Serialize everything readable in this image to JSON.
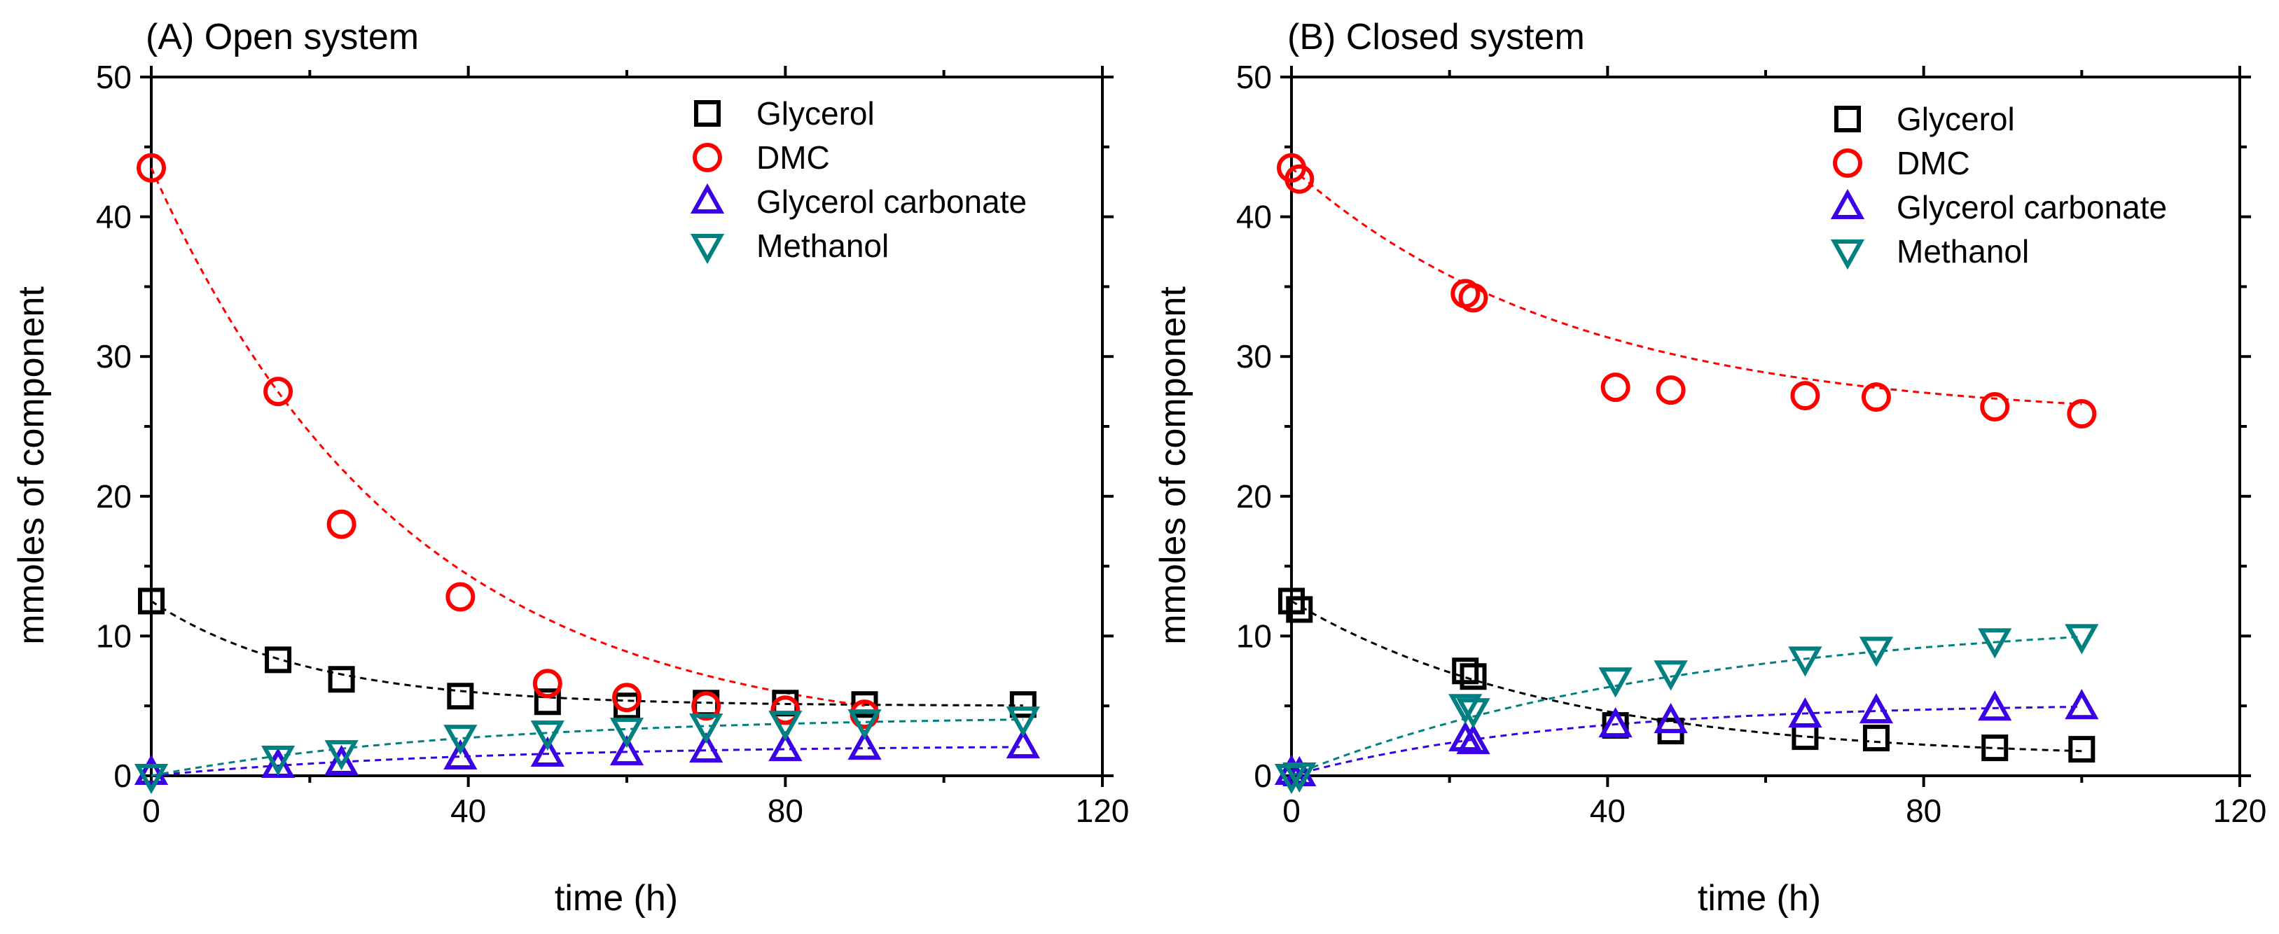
{
  "chart_data": [
    {
      "type": "scatter",
      "title": "(A) Open system",
      "xlabel": "time (h)",
      "ylabel": "mmoles of component",
      "xlim": [
        0,
        120
      ],
      "ylim": [
        0,
        50
      ],
      "xticks": [
        0,
        40,
        80,
        120
      ],
      "yticks": [
        0,
        10,
        20,
        30,
        40,
        50
      ],
      "legend_position": "top-right",
      "grid": false,
      "series": [
        {
          "name": "Glycerol",
          "marker": "square",
          "color": "#000000",
          "x": [
            0,
            16,
            24,
            39,
            50,
            60,
            70,
            80,
            90,
            110
          ],
          "y": [
            12.5,
            8.3,
            6.9,
            5.7,
            5.3,
            5.0,
            5.2,
            5.2,
            5.1,
            5.1
          ],
          "fit": {
            "kind": "exp",
            "a": 5.0,
            "b": 7.5,
            "k": 0.05
          }
        },
        {
          "name": "DMC",
          "marker": "circle",
          "color": "#ff0000",
          "x": [
            0,
            16,
            24,
            39,
            50,
            60,
            70,
            80,
            90
          ],
          "y": [
            43.5,
            27.5,
            18.0,
            12.8,
            6.6,
            5.6,
            5.0,
            4.7,
            4.4
          ],
          "fit": {
            "kind": "exp",
            "a": 2.5,
            "b": 41.0,
            "k": 0.031
          }
        },
        {
          "name": "Glycerol carbonate",
          "marker": "triangle-up",
          "color": "#3a00e6",
          "x": [
            0,
            16,
            24,
            39,
            50,
            60,
            70,
            80,
            90,
            110
          ],
          "y": [
            0.2,
            0.7,
            0.9,
            1.3,
            1.5,
            1.6,
            1.8,
            1.9,
            2.0,
            2.1
          ],
          "fit": {
            "kind": "rise",
            "a": 2.2,
            "k": 0.025
          }
        },
        {
          "name": "Methanol",
          "marker": "triangle-down",
          "color": "#008080",
          "x": [
            0,
            16,
            24,
            39,
            50,
            60,
            70,
            80,
            90,
            110
          ],
          "y": [
            0.0,
            1.3,
            1.7,
            2.8,
            3.1,
            3.3,
            3.6,
            3.8,
            3.9,
            4.1
          ],
          "fit": {
            "kind": "rise",
            "a": 4.3,
            "k": 0.025
          }
        }
      ]
    },
    {
      "type": "scatter",
      "title": "(B) Closed system",
      "xlabel": "time (h)",
      "ylabel": "mmoles of component",
      "xlim": [
        0,
        120
      ],
      "ylim": [
        0,
        50
      ],
      "xticks": [
        0,
        40,
        80,
        120
      ],
      "yticks": [
        0,
        10,
        20,
        30,
        40,
        50
      ],
      "legend_position": "top-right",
      "grid": false,
      "series": [
        {
          "name": "Glycerol",
          "marker": "square",
          "color": "#000000",
          "x": [
            0,
            1,
            22,
            23,
            41,
            48,
            65,
            74,
            89,
            100
          ],
          "y": [
            12.5,
            11.9,
            7.5,
            7.1,
            3.6,
            3.2,
            2.8,
            2.7,
            2.0,
            1.9
          ],
          "fit": {
            "kind": "exp",
            "a": 1.2,
            "b": 11.3,
            "k": 0.03
          }
        },
        {
          "name": "DMC",
          "marker": "circle",
          "color": "#ff0000",
          "x": [
            0,
            1,
            22,
            23,
            41,
            48,
            65,
            74,
            89,
            100
          ],
          "y": [
            43.5,
            42.7,
            34.5,
            34.2,
            27.8,
            27.6,
            27.2,
            27.1,
            26.4,
            25.9
          ],
          "fit": {
            "kind": "exp",
            "a": 25.5,
            "b": 18.0,
            "k": 0.028
          }
        },
        {
          "name": "Glycerol carbonate",
          "marker": "triangle-up",
          "color": "#3a00e6",
          "x": [
            0,
            1,
            22,
            23,
            41,
            48,
            65,
            74,
            89,
            100
          ],
          "y": [
            0.2,
            0.1,
            2.6,
            2.4,
            3.6,
            3.9,
            4.3,
            4.6,
            4.8,
            4.9
          ],
          "fit": {
            "kind": "rise",
            "a": 5.2,
            "k": 0.03
          }
        },
        {
          "name": "Methanol",
          "marker": "triangle-down",
          "color": "#008080",
          "x": [
            0,
            1,
            22,
            23,
            41,
            48,
            65,
            74,
            89,
            100
          ],
          "y": [
            0.0,
            0.1,
            5.0,
            4.7,
            6.9,
            7.4,
            8.4,
            9.1,
            9.7,
            10.0
          ],
          "fit": {
            "kind": "rise",
            "a": 11.5,
            "k": 0.02
          }
        }
      ]
    }
  ]
}
